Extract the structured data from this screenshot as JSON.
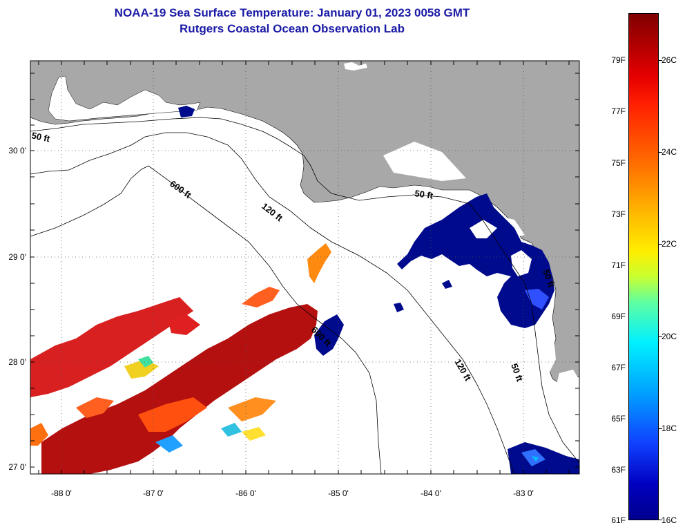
{
  "title": {
    "line1": "NOAA-19 Sea Surface Temperature:  January 01, 2023 0058 GMT",
    "line2": "Rutgers Coastal Ocean Observation Lab"
  },
  "axes": {
    "y_labels": [
      "30 0'",
      "29 0'",
      "28 0'",
      "27 0'"
    ],
    "x_labels": [
      "-88 0'",
      "-87 0'",
      "-86 0'",
      "-85 0'",
      "-84 0'",
      "-83 0'"
    ]
  },
  "contours": {
    "labels": [
      "50 ft",
      "600 ft",
      "120 ft",
      "50 ft",
      "600 ft",
      "120 ft",
      "50 ft",
      "50 ft"
    ]
  },
  "colorbar": {
    "fahrenheit": [
      "79F",
      "77F",
      "75F",
      "73F",
      "71F",
      "69F",
      "67F",
      "65F",
      "63F",
      "61F"
    ],
    "celsius": [
      "26C",
      "24C",
      "22C",
      "20C",
      "18C",
      "16C"
    ]
  },
  "colors": {
    "land": "#a8a8a8",
    "water": "#ffffff",
    "title": "#1a1aa6",
    "cold": "#000a8c",
    "warm": "#b41010"
  }
}
